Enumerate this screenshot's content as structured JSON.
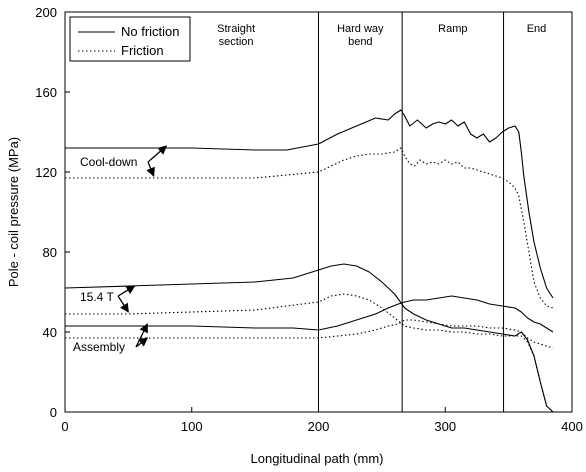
{
  "chart_data": {
    "type": "line",
    "title": "",
    "xlabel": "Longitudinal path (mm)",
    "ylabel": "Pole - coil pressure (MPa)",
    "xlim": [
      0,
      400
    ],
    "ylim": [
      0,
      200
    ],
    "xticks": [
      "0",
      "100",
      "200",
      "300",
      "400"
    ],
    "yticks": [
      "0",
      "40",
      "80",
      "120",
      "160",
      "200"
    ],
    "grid": false,
    "legend": {
      "position": "top-left",
      "entries": [
        "No friction",
        "Friction"
      ]
    },
    "vlines": [
      200,
      266,
      346
    ],
    "regions": [
      {
        "label_lines": [
          "Straight",
          "section"
        ],
        "x": 135
      },
      {
        "label_lines": [
          "Hard way",
          "bend"
        ],
        "x": 233
      },
      {
        "label_lines": [
          "Ramp"
        ],
        "x": 306
      },
      {
        "label_lines": [
          "End"
        ],
        "x": 372
      }
    ],
    "annotations": [
      {
        "text": "Cool-down",
        "points_to": [
          [
            80,
            133
          ],
          [
            70,
            118
          ]
        ]
      },
      {
        "text": "15.4 T",
        "points_to": [
          [
            55,
            63
          ],
          [
            50,
            50
          ]
        ]
      },
      {
        "text": "Assembly",
        "points_to": [
          [
            65,
            44
          ],
          [
            65,
            37
          ]
        ]
      }
    ],
    "series": [
      {
        "group": "Cool-down",
        "style": "solid",
        "x": [
          0,
          50,
          100,
          150,
          175,
          200,
          215,
          230,
          245,
          255,
          260,
          265,
          268,
          272,
          278,
          285,
          290,
          295,
          300,
          305,
          310,
          315,
          320,
          325,
          330,
          335,
          340,
          345,
          350,
          355,
          358,
          360,
          362,
          366,
          370,
          375,
          380,
          385
        ],
        "values": [
          132,
          132,
          132,
          131,
          131,
          134,
          139,
          143,
          147,
          146,
          149,
          151,
          148,
          143,
          146,
          142,
          144,
          145,
          144,
          146,
          143,
          145,
          139,
          137,
          139,
          135,
          137,
          140,
          142,
          143,
          140,
          130,
          118,
          100,
          85,
          72,
          62,
          57
        ]
      },
      {
        "group": "Cool-down",
        "style": "dotted",
        "x": [
          0,
          50,
          100,
          150,
          200,
          210,
          220,
          230,
          240,
          250,
          260,
          265,
          268,
          272,
          276,
          280,
          285,
          290,
          295,
          300,
          305,
          310,
          315,
          320,
          325,
          330,
          335,
          340,
          345,
          350,
          355,
          358,
          362,
          366,
          370,
          375,
          380,
          385
        ],
        "values": [
          117,
          117,
          117,
          117,
          120,
          123,
          126,
          128,
          129,
          129,
          130,
          132,
          128,
          124,
          123,
          126,
          124,
          125,
          124,
          126,
          124,
          125,
          122,
          122,
          121,
          120,
          119,
          118,
          117,
          115,
          112,
          108,
          95,
          80,
          65,
          57,
          53,
          52
        ]
      },
      {
        "group": "15.4 T",
        "style": "solid",
        "x": [
          0,
          50,
          100,
          150,
          180,
          200,
          210,
          220,
          230,
          240,
          250,
          260,
          268,
          275,
          285,
          295,
          305,
          315,
          325,
          335,
          345,
          355,
          360,
          365,
          370,
          375,
          380,
          385
        ],
        "values": [
          62,
          63,
          64,
          65,
          67,
          71,
          73,
          74,
          73,
          70,
          65,
          59,
          52,
          49,
          46,
          44,
          42,
          42,
          41,
          40,
          39,
          38,
          40,
          36,
          28,
          15,
          3,
          0
        ]
      },
      {
        "group": "15.4 T",
        "style": "dotted",
        "x": [
          0,
          50,
          100,
          150,
          200,
          210,
          220,
          230,
          240,
          250,
          260,
          268,
          275,
          285,
          295,
          305,
          315,
          325,
          335,
          345,
          355,
          360,
          365,
          370,
          375,
          380,
          385
        ],
        "values": [
          49,
          49,
          50,
          51,
          55,
          58,
          59,
          58,
          56,
          52,
          47,
          43,
          42,
          41,
          41,
          40,
          40,
          39,
          39,
          38,
          38,
          38,
          35,
          28,
          15,
          3,
          0
        ]
      },
      {
        "group": "Assembly",
        "style": "solid",
        "x": [
          0,
          50,
          100,
          150,
          180,
          200,
          215,
          230,
          245,
          255,
          263,
          268,
          275,
          285,
          295,
          305,
          315,
          325,
          335,
          345,
          355,
          360,
          365,
          370,
          375,
          380,
          385
        ],
        "values": [
          43,
          43,
          43,
          42,
          42,
          41,
          43,
          46,
          49,
          52,
          54,
          55,
          56,
          56,
          57,
          58,
          57,
          56,
          54,
          53,
          52,
          50,
          47,
          45,
          44,
          42,
          40
        ]
      },
      {
        "group": "Assembly",
        "style": "dotted",
        "x": [
          0,
          50,
          100,
          150,
          200,
          215,
          230,
          245,
          255,
          263,
          268,
          275,
          285,
          295,
          305,
          315,
          325,
          335,
          345,
          355,
          360,
          365,
          370,
          375,
          380,
          385
        ],
        "values": [
          37,
          37,
          37,
          37,
          37,
          38,
          39,
          41,
          43,
          44,
          46,
          46,
          45,
          44,
          43,
          43,
          43,
          42,
          42,
          41,
          40,
          37,
          35,
          34,
          33,
          32
        ]
      }
    ]
  }
}
